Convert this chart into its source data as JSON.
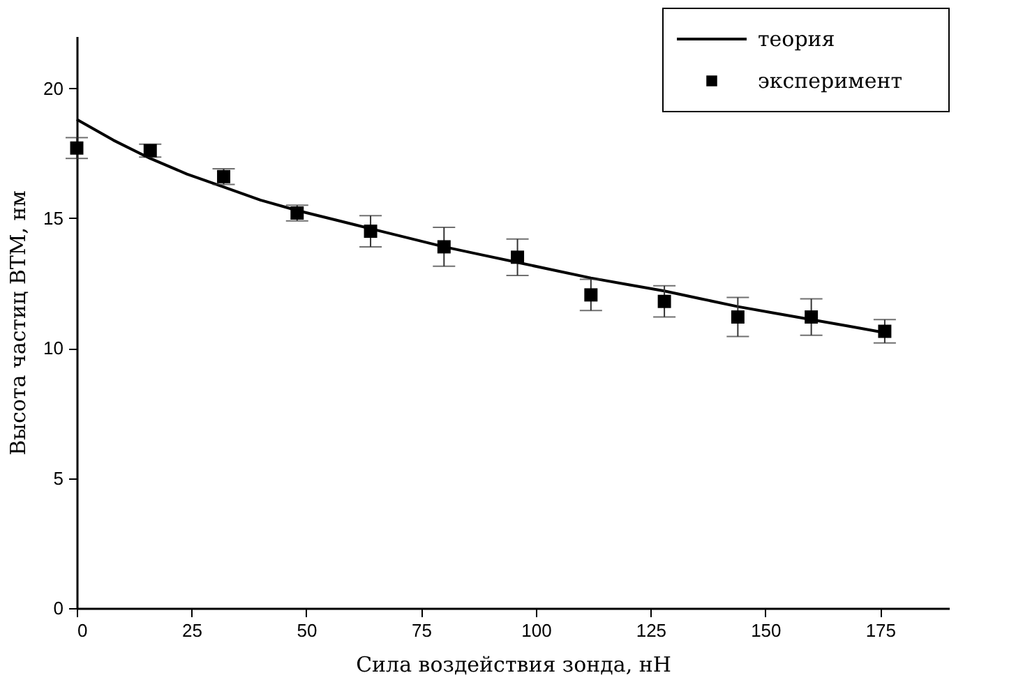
{
  "chart_data": {
    "type": "scatter",
    "xlabel": "Сила воздействия зонда, нН",
    "ylabel": "Высота частиц ВТМ, нм",
    "xlim": [
      0,
      190
    ],
    "xticks": [
      0,
      25,
      50,
      75,
      100,
      125,
      150,
      175
    ],
    "ylim": [
      0,
      22
    ],
    "yticks": [
      0,
      5,
      10,
      15,
      20
    ],
    "grid": false,
    "legend": "top right",
    "series": [
      {
        "name": "теория",
        "type": "line",
        "color": "#000000",
        "marker": "none",
        "line_style": "solid",
        "x": [
          0,
          8,
          16,
          24,
          32,
          40,
          48,
          56,
          64,
          72,
          80,
          88,
          96,
          104,
          112,
          120,
          128,
          136,
          144,
          152,
          160,
          168,
          176
        ],
        "values": [
          18.8,
          18.0,
          17.3,
          16.7,
          16.2,
          15.7,
          15.3,
          14.95,
          14.6,
          14.25,
          13.9,
          13.6,
          13.3,
          13.0,
          12.7,
          12.45,
          12.2,
          11.9,
          11.6,
          11.35,
          11.1,
          10.85,
          10.6
        ]
      },
      {
        "name": "эксперимент",
        "type": "scatter",
        "color": "#000000",
        "marker": "square",
        "x": [
          0,
          16,
          32,
          48,
          64,
          80,
          96,
          112,
          128,
          144,
          160,
          176
        ],
        "values": [
          17.7,
          17.6,
          16.6,
          15.2,
          14.5,
          13.9,
          13.5,
          12.05,
          11.8,
          11.2,
          11.2,
          10.65
        ],
        "errors": [
          0.4,
          0.25,
          0.3,
          0.3,
          0.6,
          0.75,
          0.7,
          0.6,
          0.6,
          0.75,
          0.7,
          0.45
        ]
      }
    ]
  }
}
